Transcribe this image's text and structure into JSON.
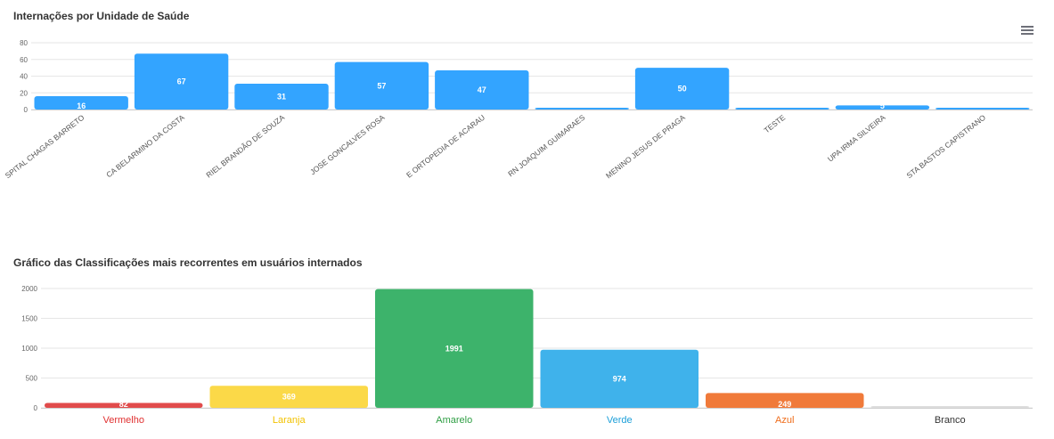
{
  "charts": [
    {
      "title": "Internações por Unidade de Saúde"
    },
    {
      "title": "Gráfico das Classificações mais recorrentes em usuários internados"
    }
  ],
  "chart_data": [
    {
      "type": "bar",
      "title": "Internações por Unidade de Saúde",
      "categories": [
        "SPITAL CHAGAS BARRETO",
        "CA BELARMINO DA COSTA",
        "RIEL BRANDÃO DE SOUZA",
        "JOSE GONCALVES ROSA",
        "E ORTOPEDIA DE ACARAU",
        "RN JOAQUIM GUIMARAES",
        "MENINO JESUS DE PRAGA",
        "TESTE",
        "UPA IRMA SILVEIRA",
        "STA BASTOS CAPISTRANO"
      ],
      "values": [
        16,
        67,
        31,
        57,
        47,
        1,
        50,
        1,
        5,
        2
      ],
      "value_labels": [
        "16",
        "67",
        "31",
        "57",
        "47",
        "",
        "50",
        "",
        "5",
        ""
      ],
      "yticks": [
        "0",
        "20",
        "40",
        "60",
        "80"
      ],
      "ylim": [
        0,
        80
      ],
      "xlabel": "",
      "ylabel": "",
      "color": "#33a4ff",
      "grid": true
    },
    {
      "type": "bar",
      "title": "Gráfico das Classificações mais recorrentes em usuários internados",
      "categories": [
        "Vermelho",
        "Laranja",
        "Amarelo",
        "Verde",
        "Azul",
        "Branco"
      ],
      "values": [
        82,
        369,
        1991,
        974,
        249,
        0
      ],
      "value_labels": [
        "82",
        "369",
        "1991",
        "974",
        "249",
        ""
      ],
      "colors": [
        "#e14b4b",
        "#fbd948",
        "#3db36b",
        "#3fb2eb",
        "#f07a3a",
        "#dddddd"
      ],
      "label_colors": [
        "#e03131",
        "#f2c200",
        "#2f9e44",
        "#1c9fd9",
        "#ef6c1a",
        "#333333"
      ],
      "yticks": [
        "0",
        "500",
        "1000",
        "1500",
        "2000"
      ],
      "ylim": [
        0,
        2000
      ],
      "xlabel": "",
      "ylabel": "",
      "grid": true
    }
  ]
}
